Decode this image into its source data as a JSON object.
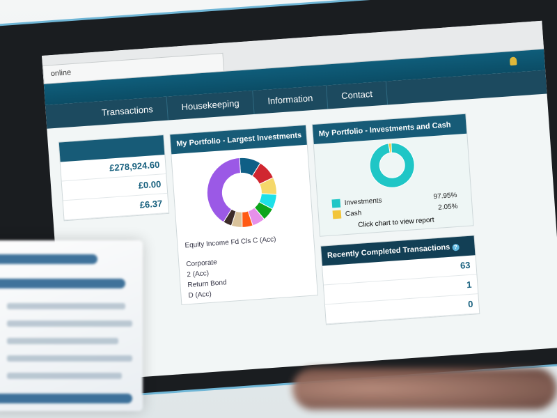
{
  "browser": {
    "tab_label": "online"
  },
  "nav": {
    "items": [
      "Transactions",
      "Housekeeping",
      "Information",
      "Contact"
    ]
  },
  "summary": {
    "values": [
      "£278,924.60",
      "£0.00",
      "£6.37"
    ]
  },
  "largest": {
    "title": "My Portfolio - Largest Investments",
    "holdings": [
      "Equity Income Fd Cls C (Acc)",
      "Corporate",
      "2 (Acc)",
      "Return Bond",
      "D (Acc)"
    ],
    "chart_data": {
      "type": "pie",
      "values": [
        40,
        10,
        9,
        8,
        7,
        6,
        6,
        5,
        5,
        4
      ],
      "colors": [
        "#9b59e6",
        "#0f5f86",
        "#d02630",
        "#f5d86a",
        "#1de0e8",
        "#0da51c",
        "#e690ea",
        "#ff5a14",
        "#d9c29a",
        "#3d2c2a"
      ]
    }
  },
  "cash": {
    "title": "My Portfolio - Investments and Cash",
    "items": [
      {
        "label": "Investments",
        "pct": "97.95%",
        "color": "#1fc6c6"
      },
      {
        "label": "Cash",
        "pct": "2.05%",
        "color": "#f2c53a"
      }
    ],
    "hint": "Click chart to view report",
    "chart_data": {
      "type": "pie",
      "categories": [
        "Investments",
        "Cash"
      ],
      "values": [
        97.95,
        2.05
      ]
    }
  },
  "recent": {
    "title": "Recently Completed Transactions",
    "help_icon": "question-circle-icon",
    "counts": [
      "63",
      "1",
      "0"
    ]
  }
}
